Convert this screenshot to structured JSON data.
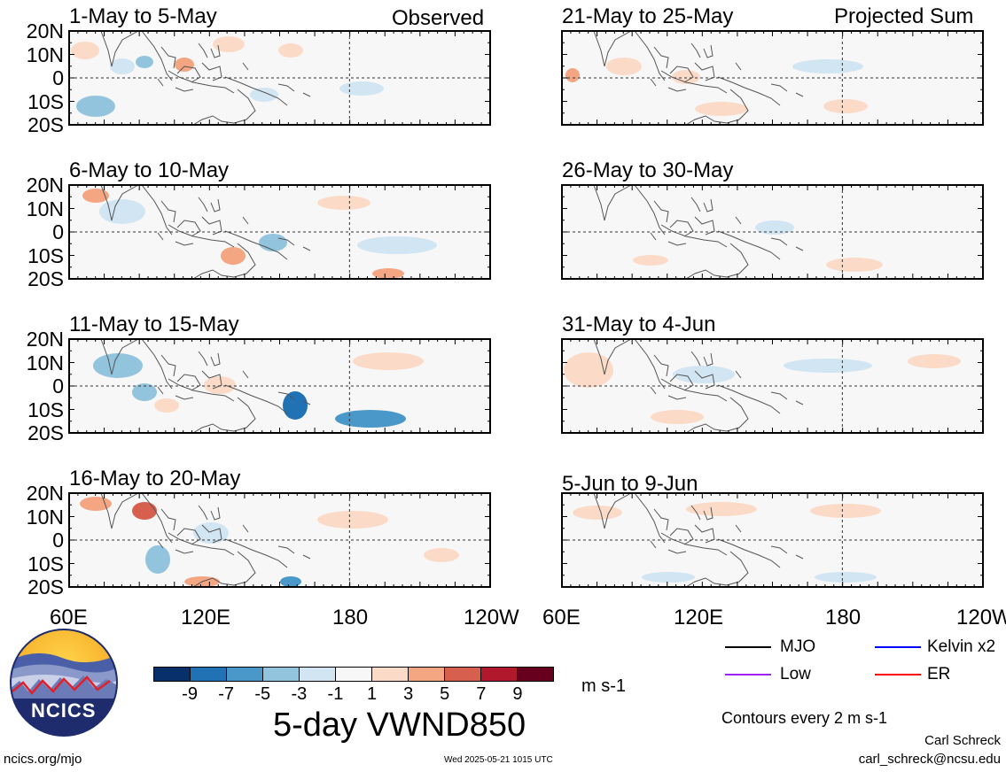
{
  "panels": [
    {
      "title": "1-May to 5-May",
      "corner": "Observed"
    },
    {
      "title": "21-May to 25-May",
      "corner": "Projected Sum"
    },
    {
      "title": "6-May to 10-May",
      "corner": ""
    },
    {
      "title": "26-May to 30-May",
      "corner": ""
    },
    {
      "title": "11-May to 15-May",
      "corner": ""
    },
    {
      "title": "31-May to 4-Jun",
      "corner": ""
    },
    {
      "title": "16-May to 20-May",
      "corner": ""
    },
    {
      "title": "5-Jun to 9-Jun",
      "corner": ""
    }
  ],
  "lat_labels": [
    "20N",
    "10N",
    "0",
    "10S",
    "20S"
  ],
  "lon_labels": [
    "60E",
    "120E",
    "180",
    "120W"
  ],
  "colorbar": {
    "colors": [
      "#08306b",
      "#2171b5",
      "#4a98c9",
      "#93c4de",
      "#d1e5f2",
      "#f7f7f7",
      "#fbdbc7",
      "#f4a582",
      "#d6604d",
      "#b2182b",
      "#67001f"
    ],
    "tick_labels": [
      "-9",
      "-7",
      "-5",
      "-3",
      "-1",
      "1",
      "3",
      "5",
      "7",
      "9"
    ],
    "units": "m s-1"
  },
  "plot_title": "5-day VWND850",
  "legend": {
    "items": [
      {
        "label": "MJO",
        "color": "#000000"
      },
      {
        "label": "Kelvin x2",
        "color": "#0000ff"
      },
      {
        "label": "Low",
        "color": "#a020f0"
      },
      {
        "label": "ER",
        "color": "#ff0000"
      }
    ],
    "contour_note": "Contours every 2 m s-1"
  },
  "logo_text": "NCICS",
  "footer": {
    "url": "ncics.org/mjo",
    "timestamp": "Wed 2025-05-21 1015 UTC",
    "author": "Carl Schreck",
    "email": "carl_schreck@ncsu.edu"
  }
}
